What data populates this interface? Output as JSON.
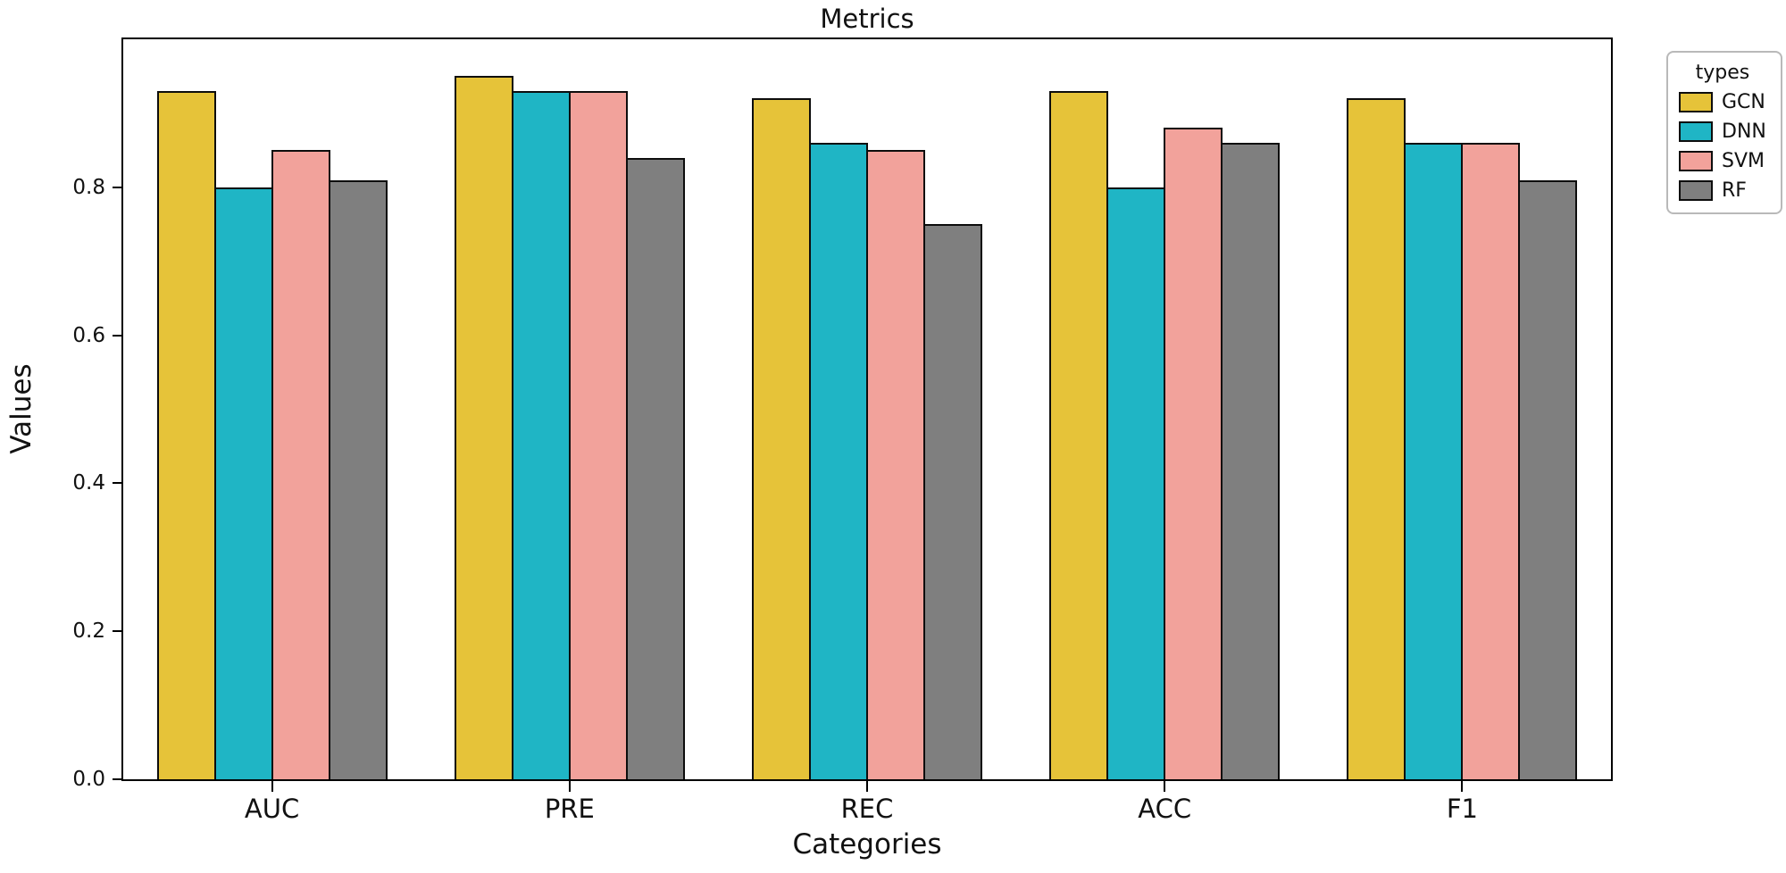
{
  "chart_data": {
    "type": "bar",
    "title": "Metrics",
    "xlabel": "Categories",
    "ylabel": "Values",
    "categories": [
      "AUC",
      "PRE",
      "REC",
      "ACC",
      "F1"
    ],
    "series": [
      {
        "name": "GCN",
        "color": "#e6c339",
        "values": [
          0.93,
          0.95,
          0.92,
          0.93,
          0.92
        ]
      },
      {
        "name": "DNN",
        "color": "#1fb5c5",
        "values": [
          0.8,
          0.93,
          0.86,
          0.8,
          0.86
        ]
      },
      {
        "name": "SVM",
        "color": "#f2a29b",
        "values": [
          0.85,
          0.93,
          0.85,
          0.88,
          0.86
        ]
      },
      {
        "name": "RF",
        "color": "#7f7f7f",
        "values": [
          0.81,
          0.84,
          0.75,
          0.86,
          0.81
        ]
      }
    ],
    "legend_title": "types",
    "legend_position": "upper right outside",
    "ylim": [
      0,
      1.0
    ],
    "yticks": [
      0.0,
      0.2,
      0.4,
      0.6,
      0.8
    ],
    "grid": false,
    "bar_edge_color": "#000000",
    "background_color": "#ffffff"
  }
}
